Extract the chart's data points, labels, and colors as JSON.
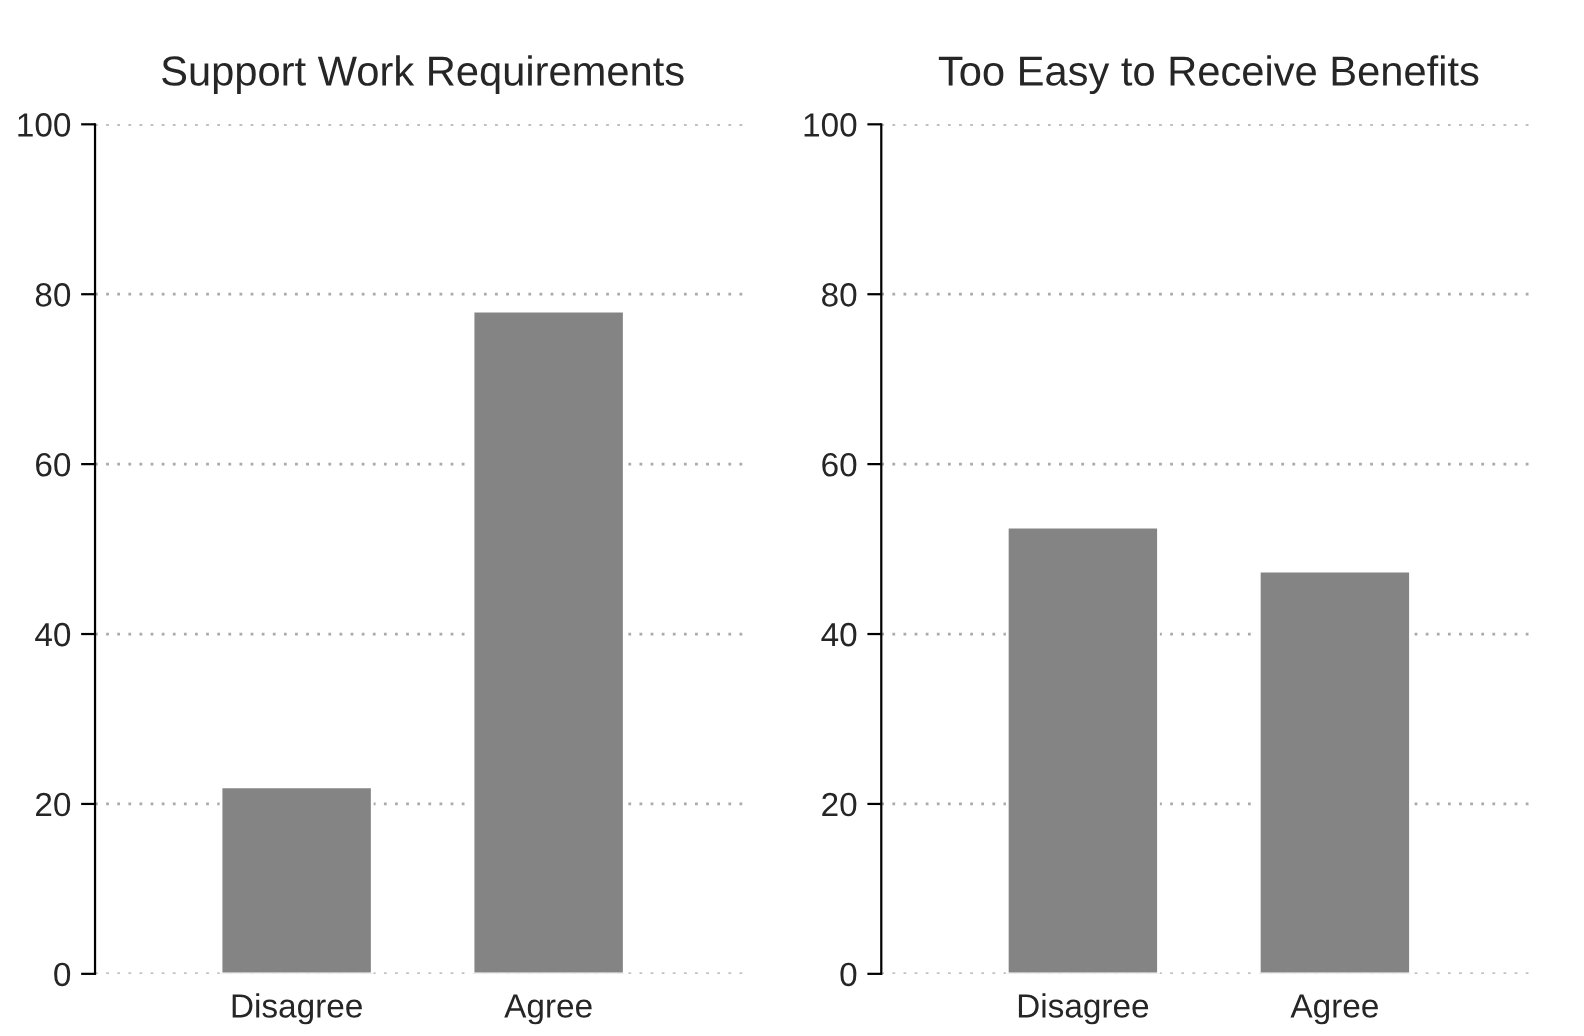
{
  "chart_data": [
    {
      "type": "bar",
      "title": "Support Work Requirements",
      "categories": [
        "Disagree",
        "Agree"
      ],
      "values": [
        22,
        78
      ],
      "color": "#848484",
      "ylim": [
        0,
        100
      ],
      "yticks": [
        0,
        20,
        40,
        60,
        80,
        100
      ],
      "grid": "y"
    },
    {
      "type": "bar",
      "title": "Too Easy to Receive Benefits",
      "categories": [
        "Disagree",
        "Agree"
      ],
      "values": [
        52.6,
        47.4
      ],
      "color": "#848484",
      "ylim": [
        0,
        100
      ],
      "yticks": [
        0,
        20,
        40,
        60,
        80,
        100
      ],
      "grid": "y"
    }
  ]
}
